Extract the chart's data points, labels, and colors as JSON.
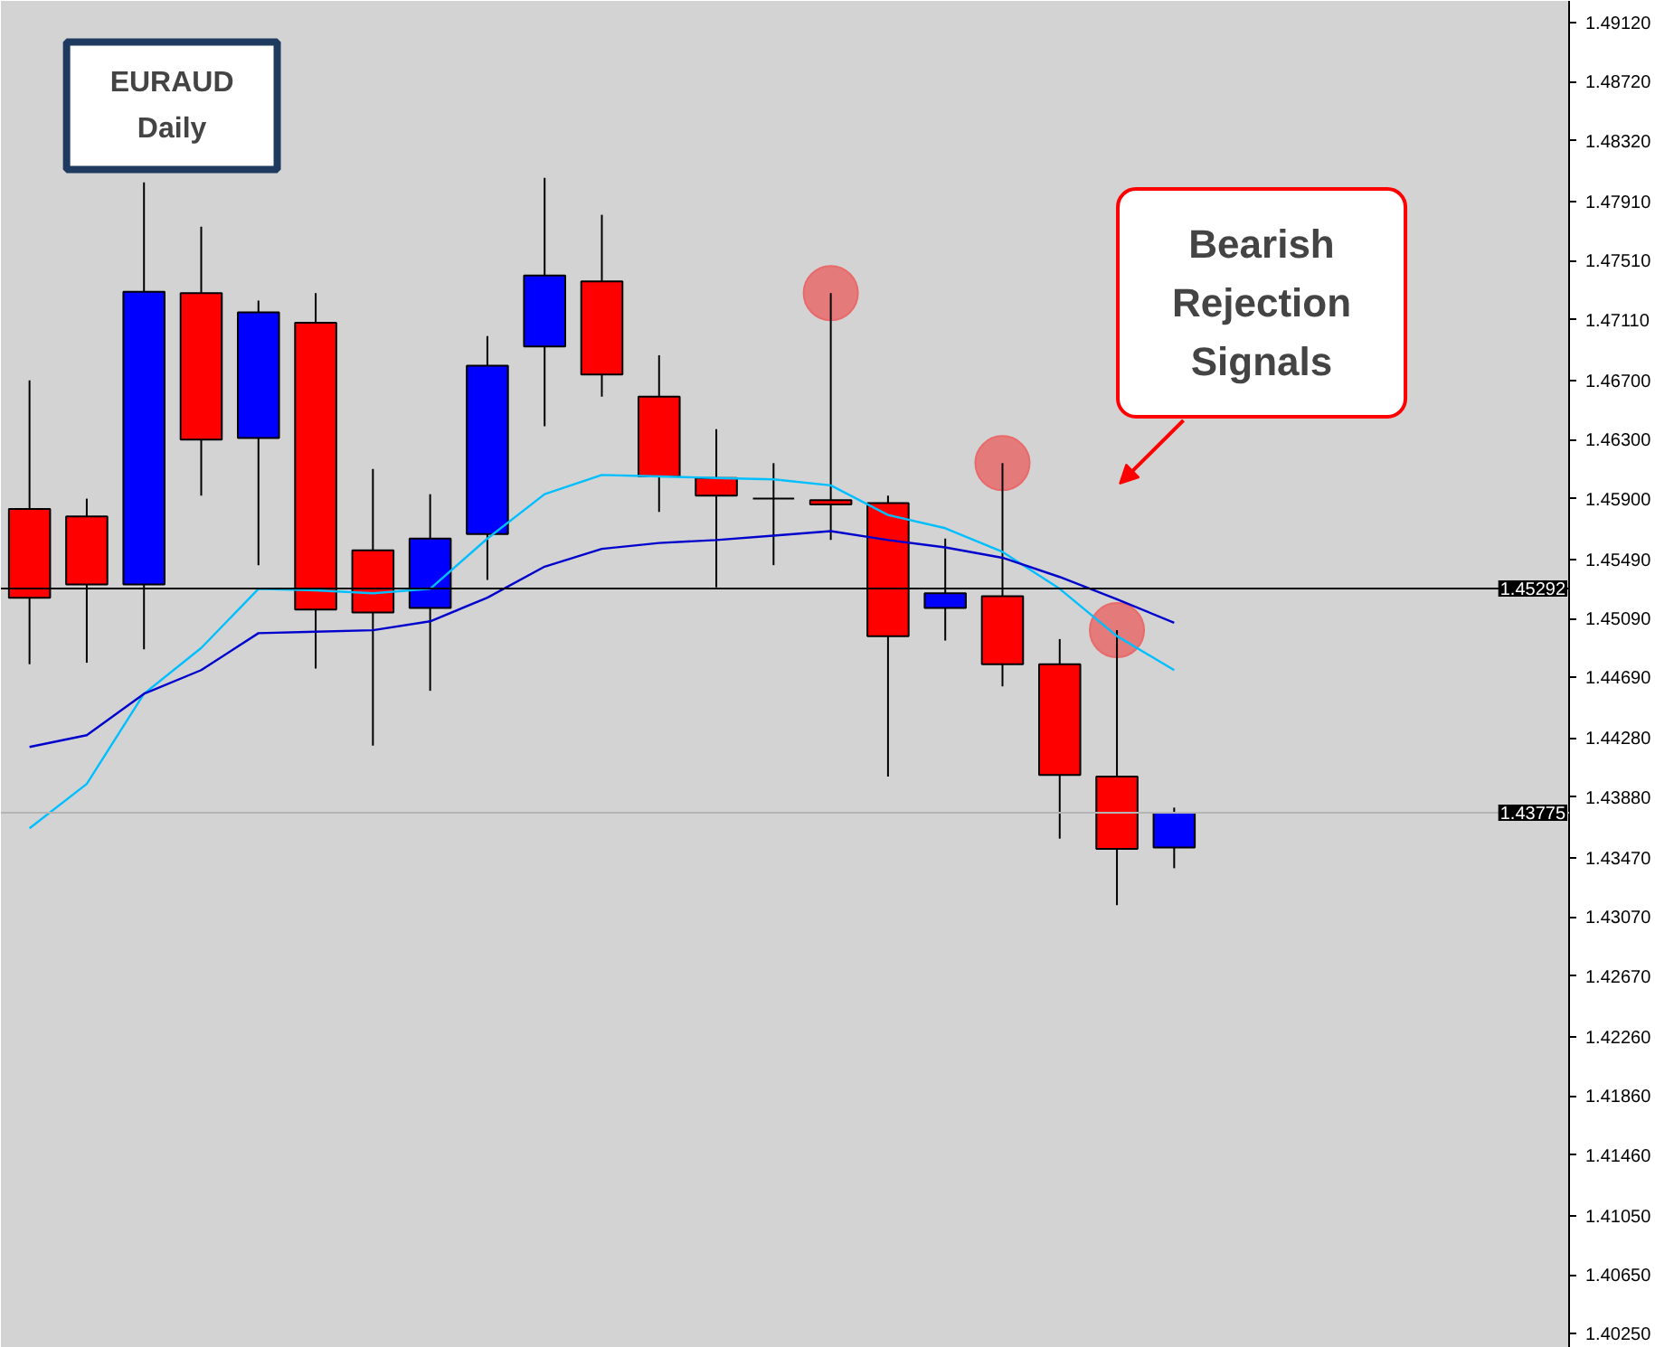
{
  "chart_data": {
    "type": "candlestick",
    "title": "EURAUD",
    "subtitle": "Daily",
    "annotations": [
      "Bearish Rejection Signals"
    ],
    "categories": [
      null,
      null,
      null,
      null,
      null,
      null,
      null,
      null,
      null,
      null,
      null,
      null,
      null,
      null,
      null,
      null,
      null,
      null,
      null,
      null,
      null
    ],
    "ohlc": [
      [
        1.4583,
        1.467,
        1.4478,
        1.4523
      ],
      [
        1.4578,
        1.459,
        1.4479,
        1.4532
      ],
      [
        1.4532,
        1.4804,
        1.4488,
        1.473
      ],
      [
        1.4729,
        1.4774,
        1.4592,
        1.463
      ],
      [
        1.4631,
        1.4724,
        1.4545,
        1.4716
      ],
      [
        1.4709,
        1.4729,
        1.4475,
        1.4515
      ],
      [
        1.4555,
        1.461,
        1.4423,
        1.4513
      ],
      [
        1.4516,
        1.4593,
        1.446,
        1.4563
      ],
      [
        1.4566,
        1.47,
        1.4535,
        1.468
      ],
      [
        1.4693,
        1.4807,
        1.4639,
        1.4741
      ],
      [
        1.4737,
        1.4782,
        1.4659,
        1.4674
      ],
      [
        1.4659,
        1.4687,
        1.4581,
        1.4605
      ],
      [
        1.4604,
        1.4637,
        1.453,
        1.4592
      ],
      [
        1.459,
        1.4614,
        1.4545,
        1.459
      ],
      [
        1.4589,
        1.4729,
        1.4562,
        1.4586
      ],
      [
        1.4587,
        1.4592,
        1.4402,
        1.4497
      ],
      [
        1.4516,
        1.4563,
        1.4494,
        1.4526
      ],
      [
        1.4524,
        1.4614,
        1.4463,
        1.4478
      ],
      [
        1.4478,
        1.4495,
        1.436,
        1.4403
      ],
      [
        1.4402,
        1.4501,
        1.4315,
        1.4353
      ],
      [
        1.4354,
        1.4381,
        1.434,
        1.43775
      ]
    ],
    "colors": [
      "#ff0000",
      "#ff0000",
      "#0000ff",
      "#ff0000",
      "#0000ff",
      "#ff0000",
      "#ff0000",
      "#0000ff",
      "#0000ff",
      "#0000ff",
      "#ff0000",
      "#ff0000",
      "#ff0000",
      "#000000",
      "#ff0000",
      "#ff0000",
      "#0000ff",
      "#ff0000",
      "#ff0000",
      "#ff0000",
      "#0000ff"
    ],
    "series": [
      {
        "type": "line",
        "color": "#00bfff",
        "values": [
          1.4367,
          1.4397,
          1.4458,
          1.4489,
          1.4529,
          1.4528,
          1.4526,
          1.4529,
          1.4563,
          1.4593,
          1.4606,
          1.4605,
          1.4604,
          1.4603,
          1.4599,
          1.4579,
          1.457,
          1.4554,
          1.4529,
          1.4497,
          1.4474
        ]
      },
      {
        "type": "line",
        "color": "#0000cd",
        "values": [
          1.4422,
          1.443,
          1.4458,
          1.4474,
          1.4499,
          1.45,
          1.4501,
          1.4507,
          1.4523,
          1.4544,
          1.4556,
          1.456,
          1.4562,
          1.4565,
          1.4568,
          1.4562,
          1.4557,
          1.455,
          1.4537,
          1.4522,
          1.4506
        ]
      },
      {
        "type": "scatter",
        "color": "#e86a6a",
        "marker": "circle",
        "values": [
          null,
          null,
          null,
          null,
          null,
          null,
          null,
          null,
          null,
          null,
          null,
          null,
          null,
          null,
          1.4729,
          null,
          null,
          1.4614,
          null,
          1.4501,
          null
        ]
      }
    ],
    "ref_lines": [
      {
        "axis": "y",
        "value": 1.45292,
        "label": "1.45292",
        "color": "#000000"
      },
      {
        "axis": "y",
        "value": 1.43775,
        "label": "1.43775",
        "color": "#b4b4b4"
      }
    ],
    "ylim": [
      1.40155,
      1.49267
    ],
    "yticks": [
      {
        "value": 1.4912,
        "label": "1.49120"
      },
      {
        "value": 1.4872,
        "label": "1.48720"
      },
      {
        "value": 1.4832,
        "label": "1.48320"
      },
      {
        "value": 1.4791,
        "label": "1.47910"
      },
      {
        "value": 1.4751,
        "label": "1.47510"
      },
      {
        "value": 1.4711,
        "label": "1.47110"
      },
      {
        "value": 1.467,
        "label": "1.46700"
      },
      {
        "value": 1.463,
        "label": "1.46300"
      },
      {
        "value": 1.459,
        "label": "1.45900"
      },
      {
        "value": 1.4549,
        "label": "1.45490"
      },
      {
        "value": 1.4509,
        "label": "1.45090"
      },
      {
        "value": 1.4469,
        "label": "1.44690"
      },
      {
        "value": 1.4428,
        "label": "1.44280"
      },
      {
        "value": 1.4388,
        "label": "1.43880"
      },
      {
        "value": 1.4347,
        "label": "1.43470"
      },
      {
        "value": 1.4307,
        "label": "1.43070"
      },
      {
        "value": 1.4267,
        "label": "1.42670"
      },
      {
        "value": 1.4226,
        "label": "1.42260"
      },
      {
        "value": 1.4186,
        "label": "1.41860"
      },
      {
        "value": 1.4146,
        "label": "1.41460"
      },
      {
        "value": 1.4105,
        "label": "1.41050"
      },
      {
        "value": 1.4065,
        "label": "1.40650"
      },
      {
        "value": 1.4025,
        "label": "1.40250"
      }
    ],
    "grid": false,
    "tick_labels": "y"
  }
}
